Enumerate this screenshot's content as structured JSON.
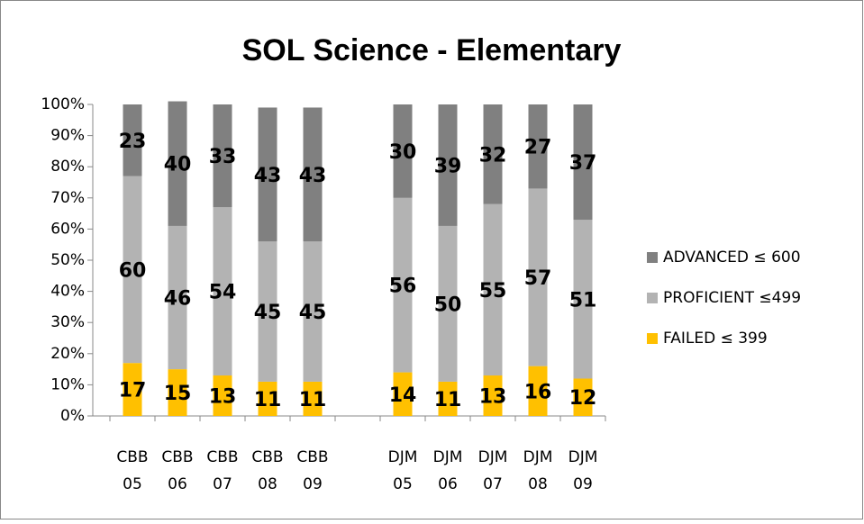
{
  "chart_data": {
    "type": "bar",
    "stacked": true,
    "title": "SOL Science - Elementary",
    "categories": [
      "CBB 05",
      "CBB 06",
      "CBB 07",
      "CBB 08",
      "CBB 09",
      null,
      "DJM 05",
      "DJM 06",
      "DJM 07",
      "DJM 08",
      "DJM 09"
    ],
    "series": [
      {
        "name": "FAILED ≤ 399",
        "color": "#ffc000",
        "values": [
          17,
          15,
          13,
          11,
          11,
          null,
          14,
          11,
          13,
          16,
          12
        ]
      },
      {
        "name": "PROFICIENT ≤499",
        "color": "#b3b3b3",
        "values": [
          60,
          46,
          54,
          45,
          45,
          null,
          56,
          50,
          55,
          57,
          51
        ]
      },
      {
        "name": "ADVANCED ≤ 600",
        "color": "#808080",
        "values": [
          23,
          40,
          33,
          43,
          43,
          null,
          30,
          39,
          32,
          27,
          37
        ]
      }
    ],
    "ylim": [
      0,
      100
    ],
    "yticks": [
      {
        "value": 0,
        "label": "0%"
      },
      {
        "value": 10,
        "label": "10%"
      },
      {
        "value": 20,
        "label": "20%"
      },
      {
        "value": 30,
        "label": "30%"
      },
      {
        "value": 40,
        "label": "40%"
      },
      {
        "value": 50,
        "label": "50%"
      },
      {
        "value": 60,
        "label": "60%"
      },
      {
        "value": 70,
        "label": "70%"
      },
      {
        "value": 80,
        "label": "80%"
      },
      {
        "value": 90,
        "label": "90%"
      },
      {
        "value": 100,
        "label": "100%"
      }
    ],
    "grid": false,
    "legend": "right"
  }
}
